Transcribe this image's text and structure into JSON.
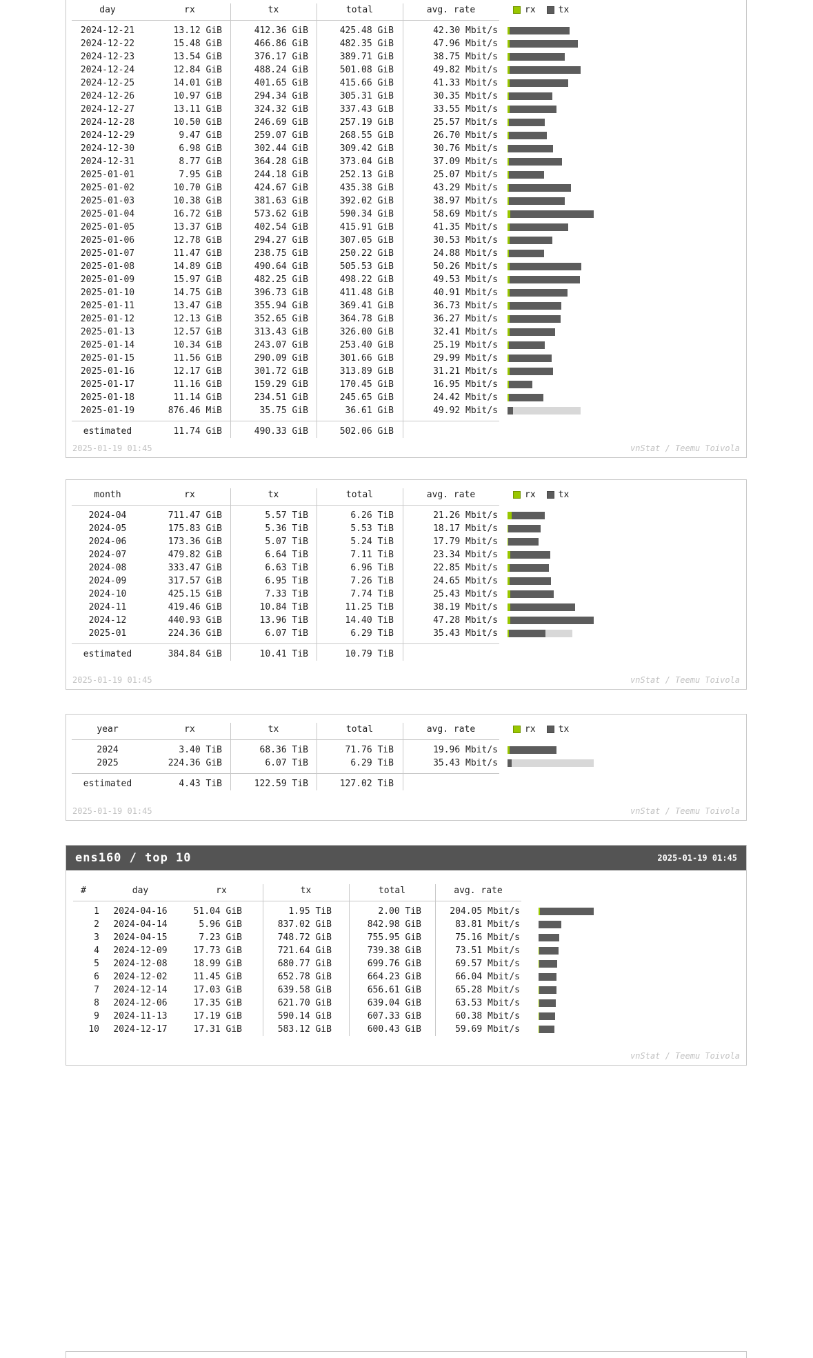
{
  "colors": {
    "rx": "#99C700",
    "tx": "#5C5C5C",
    "estimate": "#D8D8D8",
    "title_bar_bg": "#545454",
    "title_bar_text": "#FFFFFF",
    "border": "#C6C6C6",
    "grid_line": "#C8C8C8",
    "text": "#1E1E1E",
    "footer_text": "#C2C2C2"
  },
  "chart_data": [
    {
      "type": "table",
      "name": "daily traffic",
      "columns": [
        "day",
        "rx",
        "tx",
        "total",
        "avg. rate"
      ],
      "legend": {
        "rx": "rx",
        "tx": "tx"
      },
      "rows": [
        {
          "label": "2024-12-21",
          "rx": "13.12 GiB",
          "tx": "412.36 GiB",
          "total": "425.48 GiB",
          "rate": "42.30 Mbit/s"
        },
        {
          "label": "2024-12-22",
          "rx": "15.48 GiB",
          "tx": "466.86 GiB",
          "total": "482.35 GiB",
          "rate": "47.96 Mbit/s"
        },
        {
          "label": "2024-12-23",
          "rx": "13.54 GiB",
          "tx": "376.17 GiB",
          "total": "389.71 GiB",
          "rate": "38.75 Mbit/s"
        },
        {
          "label": "2024-12-24",
          "rx": "12.84 GiB",
          "tx": "488.24 GiB",
          "total": "501.08 GiB",
          "rate": "49.82 Mbit/s"
        },
        {
          "label": "2024-12-25",
          "rx": "14.01 GiB",
          "tx": "401.65 GiB",
          "total": "415.66 GiB",
          "rate": "41.33 Mbit/s"
        },
        {
          "label": "2024-12-26",
          "rx": "10.97 GiB",
          "tx": "294.34 GiB",
          "total": "305.31 GiB",
          "rate": "30.35 Mbit/s"
        },
        {
          "label": "2024-12-27",
          "rx": "13.11 GiB",
          "tx": "324.32 GiB",
          "total": "337.43 GiB",
          "rate": "33.55 Mbit/s"
        },
        {
          "label": "2024-12-28",
          "rx": "10.50 GiB",
          "tx": "246.69 GiB",
          "total": "257.19 GiB",
          "rate": "25.57 Mbit/s"
        },
        {
          "label": "2024-12-29",
          "rx": "9.47 GiB",
          "tx": "259.07 GiB",
          "total": "268.55 GiB",
          "rate": "26.70 Mbit/s"
        },
        {
          "label": "2024-12-30",
          "rx": "6.98 GiB",
          "tx": "302.44 GiB",
          "total": "309.42 GiB",
          "rate": "30.76 Mbit/s"
        },
        {
          "label": "2024-12-31",
          "rx": "8.77 GiB",
          "tx": "364.28 GiB",
          "total": "373.04 GiB",
          "rate": "37.09 Mbit/s"
        },
        {
          "label": "2025-01-01",
          "rx": "7.95 GiB",
          "tx": "244.18 GiB",
          "total": "252.13 GiB",
          "rate": "25.07 Mbit/s"
        },
        {
          "label": "2025-01-02",
          "rx": "10.70 GiB",
          "tx": "424.67 GiB",
          "total": "435.38 GiB",
          "rate": "43.29 Mbit/s"
        },
        {
          "label": "2025-01-03",
          "rx": "10.38 GiB",
          "tx": "381.63 GiB",
          "total": "392.02 GiB",
          "rate": "38.97 Mbit/s"
        },
        {
          "label": "2025-01-04",
          "rx": "16.72 GiB",
          "tx": "573.62 GiB",
          "total": "590.34 GiB",
          "rate": "58.69 Mbit/s"
        },
        {
          "label": "2025-01-05",
          "rx": "13.37 GiB",
          "tx": "402.54 GiB",
          "total": "415.91 GiB",
          "rate": "41.35 Mbit/s"
        },
        {
          "label": "2025-01-06",
          "rx": "12.78 GiB",
          "tx": "294.27 GiB",
          "total": "307.05 GiB",
          "rate": "30.53 Mbit/s"
        },
        {
          "label": "2025-01-07",
          "rx": "11.47 GiB",
          "tx": "238.75 GiB",
          "total": "250.22 GiB",
          "rate": "24.88 Mbit/s"
        },
        {
          "label": "2025-01-08",
          "rx": "14.89 GiB",
          "tx": "490.64 GiB",
          "total": "505.53 GiB",
          "rate": "50.26 Mbit/s"
        },
        {
          "label": "2025-01-09",
          "rx": "15.97 GiB",
          "tx": "482.25 GiB",
          "total": "498.22 GiB",
          "rate": "49.53 Mbit/s"
        },
        {
          "label": "2025-01-10",
          "rx": "14.75 GiB",
          "tx": "396.73 GiB",
          "total": "411.48 GiB",
          "rate": "40.91 Mbit/s"
        },
        {
          "label": "2025-01-11",
          "rx": "13.47 GiB",
          "tx": "355.94 GiB",
          "total": "369.41 GiB",
          "rate": "36.73 Mbit/s"
        },
        {
          "label": "2025-01-12",
          "rx": "12.13 GiB",
          "tx": "352.65 GiB",
          "total": "364.78 GiB",
          "rate": "36.27 Mbit/s"
        },
        {
          "label": "2025-01-13",
          "rx": "12.57 GiB",
          "tx": "313.43 GiB",
          "total": "326.00 GiB",
          "rate": "32.41 Mbit/s"
        },
        {
          "label": "2025-01-14",
          "rx": "10.34 GiB",
          "tx": "243.07 GiB",
          "total": "253.40 GiB",
          "rate": "25.19 Mbit/s"
        },
        {
          "label": "2025-01-15",
          "rx": "11.56 GiB",
          "tx": "290.09 GiB",
          "total": "301.66 GiB",
          "rate": "29.99 Mbit/s"
        },
        {
          "label": "2025-01-16",
          "rx": "12.17 GiB",
          "tx": "301.72 GiB",
          "total": "313.89 GiB",
          "rate": "31.21 Mbit/s"
        },
        {
          "label": "2025-01-17",
          "rx": "11.16 GiB",
          "tx": "159.29 GiB",
          "total": "170.45 GiB",
          "rate": "16.95 Mbit/s"
        },
        {
          "label": "2025-01-18",
          "rx": "11.14 GiB",
          "tx": "234.51 GiB",
          "total": "245.65 GiB",
          "rate": "24.42 Mbit/s"
        },
        {
          "label": "2025-01-19",
          "rx": "876.46 MiB",
          "tx": "35.75 GiB",
          "total": "36.61 GiB",
          "rate": "49.92 Mbit/s",
          "estimate_total": "502.06 GiB"
        }
      ],
      "estimated": {
        "label": "estimated",
        "rx": "11.74 GiB",
        "tx": "490.33 GiB",
        "total": "502.06 GiB"
      },
      "footer_left": "2025-01-19 01:45",
      "footer_right": "vnStat / Teemu Toivola"
    },
    {
      "type": "table",
      "name": "monthly traffic",
      "columns": [
        "month",
        "rx",
        "tx",
        "total",
        "avg. rate"
      ],
      "legend": {
        "rx": "rx",
        "tx": "tx"
      },
      "rows": [
        {
          "label": "2024-04",
          "rx": "711.47 GiB",
          "tx": "5.57 TiB",
          "total": "6.26 TiB",
          "rate": "21.26 Mbit/s"
        },
        {
          "label": "2024-05",
          "rx": "175.83 GiB",
          "tx": "5.36 TiB",
          "total": "5.53 TiB",
          "rate": "18.17 Mbit/s"
        },
        {
          "label": "2024-06",
          "rx": "173.36 GiB",
          "tx": "5.07 TiB",
          "total": "5.24 TiB",
          "rate": "17.79 Mbit/s"
        },
        {
          "label": "2024-07",
          "rx": "479.82 GiB",
          "tx": "6.64 TiB",
          "total": "7.11 TiB",
          "rate": "23.34 Mbit/s"
        },
        {
          "label": "2024-08",
          "rx": "333.47 GiB",
          "tx": "6.63 TiB",
          "total": "6.96 TiB",
          "rate": "22.85 Mbit/s"
        },
        {
          "label": "2024-09",
          "rx": "317.57 GiB",
          "tx": "6.95 TiB",
          "total": "7.26 TiB",
          "rate": "24.65 Mbit/s"
        },
        {
          "label": "2024-10",
          "rx": "425.15 GiB",
          "tx": "7.33 TiB",
          "total": "7.74 TiB",
          "rate": "25.43 Mbit/s"
        },
        {
          "label": "2024-11",
          "rx": "419.46 GiB",
          "tx": "10.84 TiB",
          "total": "11.25 TiB",
          "rate": "38.19 Mbit/s"
        },
        {
          "label": "2024-12",
          "rx": "440.93 GiB",
          "tx": "13.96 TiB",
          "total": "14.40 TiB",
          "rate": "47.28 Mbit/s"
        },
        {
          "label": "2025-01",
          "rx": "224.36 GiB",
          "tx": "6.07 TiB",
          "total": "6.29 TiB",
          "rate": "35.43 Mbit/s",
          "estimate_total": "10.79 TiB"
        }
      ],
      "estimated": {
        "label": "estimated",
        "rx": "384.84 GiB",
        "tx": "10.41 TiB",
        "total": "10.79 TiB"
      },
      "footer_left": "2025-01-19 01:45",
      "footer_right": "vnStat / Teemu Toivola"
    },
    {
      "type": "table",
      "name": "yearly traffic",
      "columns": [
        "year",
        "rx",
        "tx",
        "total",
        "avg. rate"
      ],
      "legend": {
        "rx": "rx",
        "tx": "tx"
      },
      "rows": [
        {
          "label": "2024",
          "rx": "3.40 TiB",
          "tx": "68.36 TiB",
          "total": "71.76 TiB",
          "rate": "19.96 Mbit/s"
        },
        {
          "label": "2025",
          "rx": "224.36 GiB",
          "tx": "6.07 TiB",
          "total": "6.29 TiB",
          "rate": "35.43 Mbit/s",
          "estimate_total": "127.02 TiB"
        }
      ],
      "estimated": {
        "label": "estimated",
        "rx": "4.43 TiB",
        "tx": "122.59 TiB",
        "total": "127.02 TiB"
      },
      "footer_left": "2025-01-19 01:45",
      "footer_right": "vnStat / Teemu Toivola"
    },
    {
      "type": "table",
      "name": "top 10 days",
      "title": "ens160 / top 10",
      "timestamp": "2025-01-19 01:45",
      "columns": [
        "#",
        "day",
        "rx",
        "tx",
        "total",
        "avg. rate"
      ],
      "legend": null,
      "rows": [
        {
          "rank": "1",
          "label": "2024-04-16",
          "rx": "51.04 GiB",
          "tx": "1.95 TiB",
          "total": "2.00 TiB",
          "rate": "204.05 Mbit/s"
        },
        {
          "rank": "2",
          "label": "2024-04-14",
          "rx": "5.96 GiB",
          "tx": "837.02 GiB",
          "total": "842.98 GiB",
          "rate": "83.81 Mbit/s"
        },
        {
          "rank": "3",
          "label": "2024-04-15",
          "rx": "7.23 GiB",
          "tx": "748.72 GiB",
          "total": "755.95 GiB",
          "rate": "75.16 Mbit/s"
        },
        {
          "rank": "4",
          "label": "2024-12-09",
          "rx": "17.73 GiB",
          "tx": "721.64 GiB",
          "total": "739.38 GiB",
          "rate": "73.51 Mbit/s"
        },
        {
          "rank": "5",
          "label": "2024-12-08",
          "rx": "18.99 GiB",
          "tx": "680.77 GiB",
          "total": "699.76 GiB",
          "rate": "69.57 Mbit/s"
        },
        {
          "rank": "6",
          "label": "2024-12-02",
          "rx": "11.45 GiB",
          "tx": "652.78 GiB",
          "total": "664.23 GiB",
          "rate": "66.04 Mbit/s"
        },
        {
          "rank": "7",
          "label": "2024-12-14",
          "rx": "17.03 GiB",
          "tx": "639.58 GiB",
          "total": "656.61 GiB",
          "rate": "65.28 Mbit/s"
        },
        {
          "rank": "8",
          "label": "2024-12-06",
          "rx": "17.35 GiB",
          "tx": "621.70 GiB",
          "total": "639.04 GiB",
          "rate": "63.53 Mbit/s"
        },
        {
          "rank": "9",
          "label": "2024-11-13",
          "rx": "17.19 GiB",
          "tx": "590.14 GiB",
          "total": "607.33 GiB",
          "rate": "60.38 Mbit/s"
        },
        {
          "rank": "10",
          "label": "2024-12-17",
          "rx": "17.31 GiB",
          "tx": "583.12 GiB",
          "total": "600.43 GiB",
          "rate": "59.69 Mbit/s"
        }
      ],
      "estimated": null,
      "footer_left": "",
      "footer_right": "vnStat / Teemu Toivola"
    }
  ]
}
